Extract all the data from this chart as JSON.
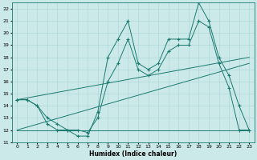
{
  "title": "",
  "xlabel": "Humidex (Indice chaleur)",
  "xlim": [
    -0.5,
    23.5
  ],
  "ylim": [
    11,
    22.5
  ],
  "yticks": [
    11,
    12,
    13,
    14,
    15,
    16,
    17,
    18,
    19,
    20,
    21,
    22
  ],
  "xticks": [
    0,
    1,
    2,
    3,
    4,
    5,
    6,
    7,
    8,
    9,
    10,
    11,
    12,
    13,
    14,
    15,
    16,
    17,
    18,
    19,
    20,
    21,
    22,
    23
  ],
  "bg_color": "#cce9ea",
  "grid_color": "#aad4d6",
  "line_color": "#1a7a6e",
  "line1_x": [
    0,
    1,
    2,
    3,
    4,
    5,
    6,
    7,
    8,
    9,
    10,
    11,
    12,
    13,
    14,
    15,
    16,
    17,
    18,
    19,
    20,
    21,
    22,
    23
  ],
  "line1_y": [
    14.5,
    14.5,
    14.0,
    12.5,
    12.0,
    12.0,
    11.5,
    11.5,
    13.5,
    18.0,
    19.5,
    21.0,
    17.5,
    17.0,
    17.5,
    19.5,
    19.5,
    19.5,
    22.5,
    21.0,
    18.0,
    16.5,
    14.0,
    12.0
  ],
  "line2_x": [
    0,
    1,
    2,
    3,
    4,
    5,
    6,
    7,
    8,
    9,
    10,
    11,
    12,
    13,
    14,
    15,
    16,
    17,
    18,
    19,
    20,
    21,
    22,
    23
  ],
  "line2_y": [
    14.5,
    14.5,
    14.0,
    13.0,
    12.5,
    12.0,
    12.0,
    11.8,
    13.0,
    16.0,
    17.5,
    19.5,
    17.0,
    16.5,
    17.0,
    18.5,
    19.0,
    19.0,
    21.0,
    20.5,
    17.5,
    15.5,
    12.0,
    12.0
  ],
  "line3_x": [
    0,
    23
  ],
  "line3_y": [
    12.0,
    12.0
  ],
  "line4_x": [
    0,
    23
  ],
  "line4_y": [
    14.5,
    18.0
  ],
  "line5_x": [
    0,
    23
  ],
  "line5_y": [
    12.0,
    17.5
  ]
}
